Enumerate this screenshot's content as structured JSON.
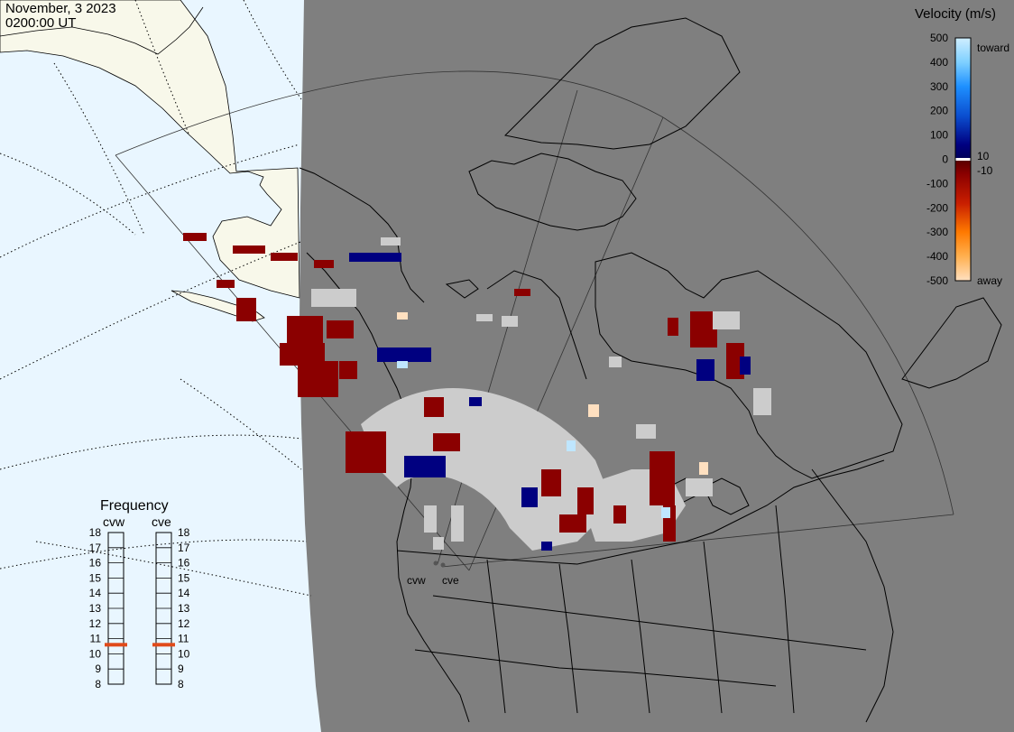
{
  "header": {
    "date": "November, 3 2023",
    "time": "0200:00 UT"
  },
  "velocity_scale": {
    "title": "Velocity (m/s)",
    "ticks": [
      "500",
      "400",
      "300",
      "200",
      "100",
      "0",
      "-100",
      "-200",
      "-300",
      "-400",
      "-500"
    ],
    "inner_ticks": [
      "10",
      "-10"
    ],
    "toward_label": "toward",
    "away_label": "away"
  },
  "frequency_panel": {
    "title": "Frequency",
    "radars": [
      "cvw",
      "cve"
    ],
    "scale_labels": [
      "18",
      "17",
      "16",
      "15",
      "14",
      "13",
      "12",
      "11",
      "10",
      "9",
      "8"
    ],
    "cvw_frequency_mhz": 10.6,
    "cve_frequency_mhz": 10.6,
    "marker_color": "#e04a1a"
  },
  "radar_sites": [
    "cvw",
    "cve"
  ],
  "colors": {
    "ocean": "#e9f6ff",
    "land_outside_night": "#f8f8ea",
    "night_land": "#7f7f7f",
    "ground_scatter": "#cccccc",
    "velocity_away_strong": "#8b0000",
    "velocity_toward_strong": "#000080",
    "velocity_away_faint": "#ffe0c0",
    "velocity_toward_faint": "#bfe6ff"
  }
}
